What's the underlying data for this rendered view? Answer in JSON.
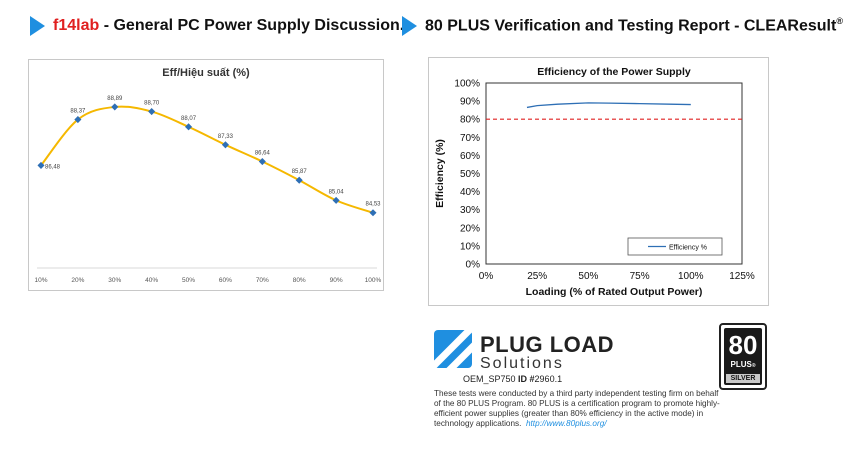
{
  "left_header": {
    "brand": "f14lab",
    "text": " - General PC Power Supply Discussion."
  },
  "right_header": {
    "text": "80 PLUS Verification and Testing Report - CLEAResult",
    "reg": "®"
  },
  "chart_data": [
    {
      "type": "line",
      "title": "Eff/Hiệu suất (%)",
      "categories": [
        "10%",
        "20%",
        "30%",
        "40%",
        "50%",
        "60%",
        "70%",
        "80%",
        "90%",
        "100%"
      ],
      "values": [
        86.48,
        88.37,
        88.89,
        88.7,
        88.07,
        87.33,
        86.64,
        85.87,
        85.04,
        84.53
      ],
      "value_labels": [
        "86,48",
        "88,37",
        "88,89",
        "88,70",
        "88,07",
        "87,33",
        "86,64",
        "85,87",
        "85,04",
        "84,53"
      ],
      "ylim": [
        82.5,
        90.0
      ],
      "grid": false,
      "line_color": "#f5b800",
      "marker_color": "#2e6fb5"
    },
    {
      "type": "line",
      "title": "Efficiency of the Power Supply",
      "xlabel": "Loading (% of Rated Output Power)",
      "ylabel": "Efficiency (%)",
      "x_ticks": [
        "0%",
        "25%",
        "50%",
        "75%",
        "100%",
        "125%"
      ],
      "y_ticks": [
        "0%",
        "10%",
        "20%",
        "30%",
        "40%",
        "50%",
        "60%",
        "70%",
        "80%",
        "90%",
        "100%"
      ],
      "xlim": [
        0,
        125
      ],
      "ylim": [
        0,
        100
      ],
      "series": [
        {
          "name": "Efficiency %",
          "x": [
            20,
            25,
            35,
            50,
            60,
            75,
            90,
            100
          ],
          "y": [
            86.5,
            87.5,
            88.3,
            89.0,
            88.9,
            88.6,
            88.3,
            88.1
          ],
          "color": "#2e6fb5"
        }
      ],
      "reference_line": {
        "y": 80,
        "color": "#e02020",
        "style": "dashed"
      },
      "legend": "bottom-right",
      "grid": false
    }
  ],
  "logo": {
    "line1": "PLUG LOAD",
    "line2": "Solutions"
  },
  "oem": {
    "prefix": "OEM_SP750 ",
    "id_label": "ID #",
    "id_value": "2960.1"
  },
  "description": {
    "text": "These tests were conducted by a third party independent testing firm on behalf of the 80 PLUS Program. 80 PLUS is a certification program to promote highly-efficient power supplies (greater than 80% efficiency in the active mode) in technology applications.",
    "link": "http://www.80plus.org/"
  },
  "badge": {
    "number": "80",
    "plus": "PLUS",
    "tier": "SILVER",
    "plus_mark": "®"
  }
}
